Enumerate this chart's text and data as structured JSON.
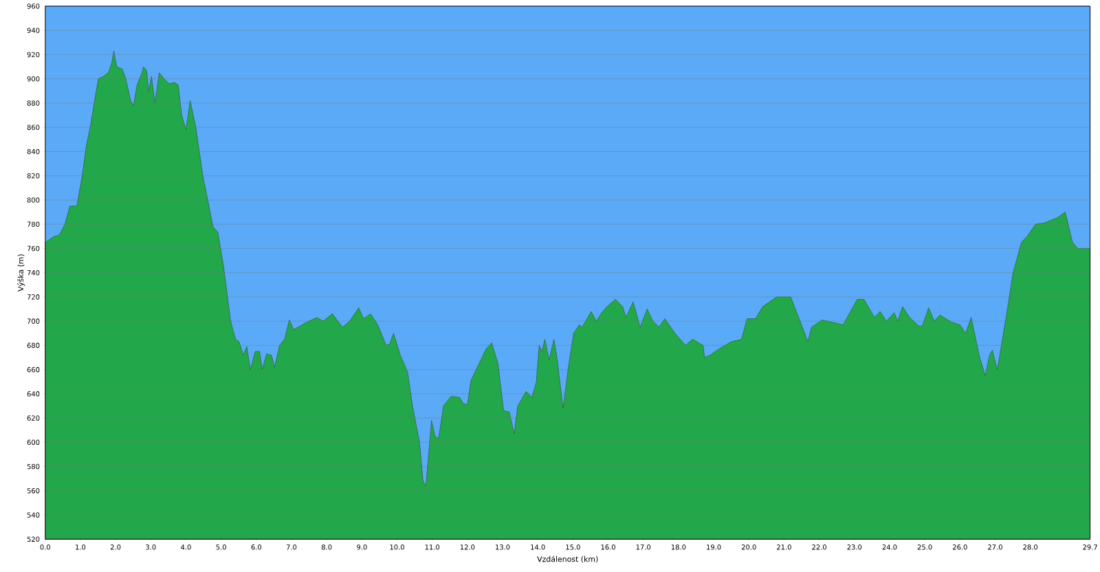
{
  "chart_data": {
    "type": "area",
    "xlabel": "Vzdálenost   (km)",
    "ylabel": "Výška (m)",
    "grid": "y",
    "xlim": [
      0,
      29.7
    ],
    "ylim": [
      520,
      960
    ],
    "xticks": [
      {
        "value": 0,
        "label": "0.0"
      },
      {
        "value": 1,
        "label": "1.0"
      },
      {
        "value": 2,
        "label": "2.0"
      },
      {
        "value": 3,
        "label": "3.0"
      },
      {
        "value": 4,
        "label": "4.0"
      },
      {
        "value": 5,
        "label": "5.0"
      },
      {
        "value": 6,
        "label": "6.0"
      },
      {
        "value": 7,
        "label": "7.0"
      },
      {
        "value": 8,
        "label": "8.0"
      },
      {
        "value": 9,
        "label": "9.0"
      },
      {
        "value": 10,
        "label": "10.0"
      },
      {
        "value": 11,
        "label": "11.0"
      },
      {
        "value": 12,
        "label": "12.0"
      },
      {
        "value": 13,
        "label": "13.0"
      },
      {
        "value": 14,
        "label": "14.0"
      },
      {
        "value": 15,
        "label": "15.0"
      },
      {
        "value": 16,
        "label": "16.0"
      },
      {
        "value": 17,
        "label": "17.0"
      },
      {
        "value": 18,
        "label": "18.0"
      },
      {
        "value": 19,
        "label": "19.0"
      },
      {
        "value": 20,
        "label": "20.0"
      },
      {
        "value": 21,
        "label": "21.0"
      },
      {
        "value": 22,
        "label": "22.0"
      },
      {
        "value": 23,
        "label": "23.0"
      },
      {
        "value": 24,
        "label": "24.0"
      },
      {
        "value": 25,
        "label": "25.0"
      },
      {
        "value": 26,
        "label": "26.0"
      },
      {
        "value": 27,
        "label": "27.0"
      },
      {
        "value": 28,
        "label": "28.0"
      },
      {
        "value": 29.7,
        "label": "29.7"
      }
    ],
    "yticks": [
      520,
      540,
      560,
      580,
      600,
      620,
      640,
      660,
      680,
      700,
      720,
      740,
      760,
      780,
      800,
      820,
      840,
      860,
      880,
      900,
      920,
      940,
      960
    ],
    "series": [
      {
        "color": "#22a84a",
        "x": [
          0,
          0.26,
          0.4,
          0.56,
          0.7,
          0.9,
          1.05,
          1.17,
          1.29,
          1.39,
          1.51,
          1.65,
          1.79,
          1.89,
          1.95,
          2.03,
          2.19,
          2.29,
          2.43,
          2.51,
          2.61,
          2.75,
          2.79,
          2.88,
          2.94,
          3.02,
          3.12,
          3.24,
          3.38,
          3.52,
          3.68,
          3.78,
          3.88,
          4.0,
          4.12,
          4.28,
          4.48,
          4.62,
          4.77,
          4.91,
          5.07,
          5.27,
          5.41,
          5.51,
          5.63,
          5.73,
          5.83,
          5.97,
          6.09,
          6.17,
          6.29,
          6.43,
          6.52,
          6.66,
          6.8,
          6.94,
          7.06,
          7.36,
          7.72,
          7.9,
          8.16,
          8.45,
          8.65,
          8.91,
          9.05,
          9.25,
          9.45,
          9.69,
          9.79,
          9.9,
          10.09,
          10.3,
          10.44,
          10.64,
          10.74,
          10.82,
          10.98,
          11.08,
          11.18,
          11.32,
          11.54,
          11.78,
          11.88,
          12.0,
          12.1,
          12.53,
          12.69,
          12.87,
          13.03,
          13.19,
          13.33,
          13.43,
          13.53,
          13.67,
          13.83,
          13.96,
          14.04,
          14.12,
          14.2,
          14.32,
          14.46,
          14.56,
          14.64,
          14.72,
          14.86,
          15.02,
          15.18,
          15.26,
          15.52,
          15.66,
          15.82,
          15.97,
          16.21,
          16.41,
          16.51,
          16.71,
          16.91,
          17.11,
          17.27,
          17.45,
          17.61,
          17.9,
          18.2,
          18.4,
          18.7,
          18.74,
          18.9,
          19.2,
          19.5,
          19.79,
          19.95,
          20.19,
          20.39,
          20.79,
          21.19,
          21.68,
          21.78,
          22.08,
          22.68,
          23.08,
          23.27,
          23.57,
          23.73,
          23.91,
          24.13,
          24.23,
          24.37,
          24.57,
          24.83,
          24.93,
          25.11,
          25.27,
          25.43,
          25.77,
          26.0,
          26.16,
          26.32,
          26.56,
          26.72,
          26.84,
          26.92,
          27.06,
          27.15,
          27.35,
          27.51,
          27.75,
          27.91,
          28.15,
          28.39,
          28.75,
          28.99,
          29.2,
          29.35,
          29.7
        ],
        "values": [
          765,
          770,
          771,
          780,
          795,
          795,
          820,
          845,
          862,
          880,
          900,
          902,
          905,
          913,
          923,
          910,
          908,
          900,
          882,
          878,
          895,
          905,
          910,
          907,
          890,
          902,
          880,
          905,
          900,
          896,
          897,
          895,
          870,
          858,
          882,
          860,
          820,
          800,
          778,
          773,
          745,
          700,
          685,
          683,
          672,
          679,
          660,
          675,
          675,
          660,
          673,
          672,
          662,
          680,
          685,
          701,
          693,
          698,
          703,
          700,
          706,
          695,
          700,
          711,
          702,
          706,
          697,
          680,
          681,
          690,
          672,
          658,
          630,
          600,
          568,
          564,
          618,
          605,
          603,
          630,
          638,
          637,
          632,
          631,
          651,
          677,
          682,
          665,
          626,
          625,
          607,
          630,
          635,
          642,
          637,
          650,
          680,
          675,
          685,
          668,
          685,
          667,
          647,
          628,
          660,
          690,
          697,
          695,
          708,
          700,
          707,
          712,
          718,
          712,
          703,
          716,
          695,
          710,
          700,
          695,
          702,
          690,
          680,
          685,
          680,
          670,
          672,
          678,
          683,
          685,
          702,
          702,
          712,
          720,
          720,
          683,
          695,
          701,
          697,
          718,
          718,
          703,
          708,
          700,
          707,
          700,
          712,
          703,
          696,
          696,
          711,
          700,
          705,
          699,
          697,
          690,
          703,
          670,
          655,
          672,
          676,
          660,
          675,
          710,
          740,
          765,
          770,
          780,
          781,
          785,
          790,
          765,
          760,
          760
        ]
      }
    ]
  }
}
